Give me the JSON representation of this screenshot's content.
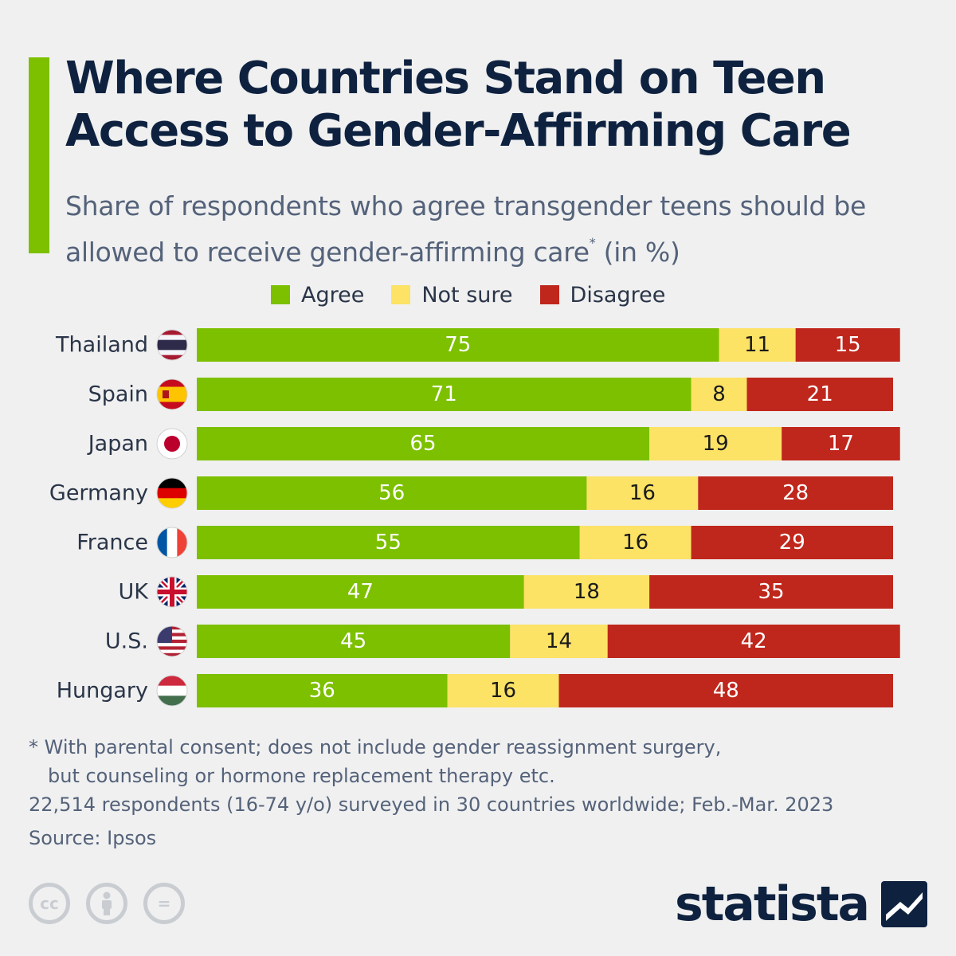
{
  "header": {
    "title": "Where Countries Stand on Teen Access to Gender-Affirming Care",
    "subtitle_main": "Share of respondents who agree transgender teens should be allowed to receive gender-affirming care",
    "subtitle_mark": "*",
    "subtitle_unit": " (in %)"
  },
  "colors": {
    "agree": "#7cc000",
    "not_sure": "#fce265",
    "disagree": "#c0271c",
    "accent": "#7cc000"
  },
  "chart_data": {
    "type": "bar",
    "orientation": "horizontal",
    "stacked": true,
    "title": "Where Countries Stand on Teen Access to Gender-Affirming Care",
    "xlabel": "",
    "ylabel": "",
    "xlim": [
      0,
      101
    ],
    "grid": false,
    "legend_position": "top",
    "categories": [
      "Thailand",
      "Spain",
      "Japan",
      "Germany",
      "France",
      "UK",
      "U.S.",
      "Hungary"
    ],
    "series": [
      {
        "name": "Agree",
        "values": [
          75,
          71,
          65,
          56,
          55,
          47,
          45,
          36
        ]
      },
      {
        "name": "Not sure",
        "values": [
          11,
          8,
          19,
          16,
          16,
          18,
          14,
          16
        ]
      },
      {
        "name": "Disagree",
        "values": [
          15,
          21,
          17,
          28,
          29,
          35,
          42,
          48
        ]
      }
    ]
  },
  "footnote": {
    "line1": "* With parental consent; does not include gender reassignment surgery,",
    "line2": "but counseling or hormone replacement therapy etc.",
    "line3": "22,514 respondents (16-74 y/o) surveyed in 30 countries worldwide; Feb.-Mar. 2023",
    "source": "Source: Ipsos"
  },
  "license_icons": [
    {
      "icon": "cc-icon",
      "text": "cc"
    },
    {
      "icon": "attribution-icon",
      "text": ""
    },
    {
      "icon": "no-derivatives-icon",
      "text": "="
    }
  ],
  "brand": {
    "name": "statista"
  }
}
